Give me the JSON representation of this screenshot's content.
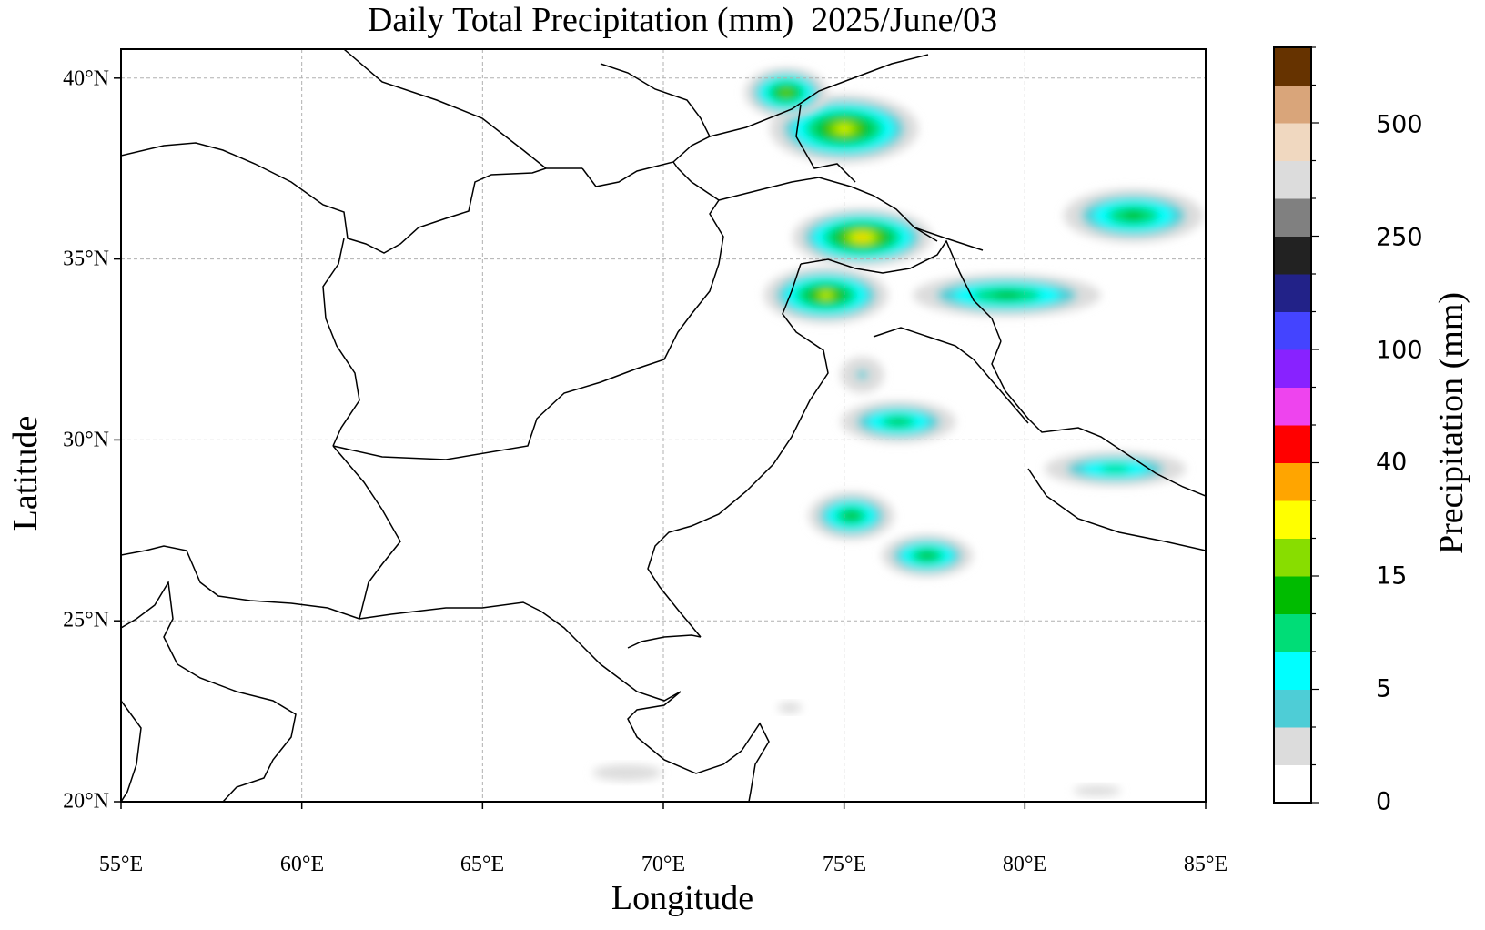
{
  "title": "Daily Total Precipitation (mm)  2025/June/03",
  "xlabel": "Longitude",
  "ylabel": "Latitude",
  "colorbar_label": "Precipitation (mm)",
  "x_ticks": [
    "55°E",
    "60°E",
    "65°E",
    "70°E",
    "75°E",
    "80°E",
    "85°E"
  ],
  "y_ticks": [
    "20°N",
    "25°N",
    "30°N",
    "35°N",
    "40°N"
  ],
  "colorbar_ticks": [
    "0",
    "5",
    "15",
    "40",
    "100",
    "250",
    "500"
  ],
  "colorbar_colors": [
    "#ffffff",
    "#dcdcdc",
    "#4ecdd6",
    "#00ffff",
    "#00dd77",
    "#00bb00",
    "#88dd00",
    "#ffff00",
    "#ffa500",
    "#ff0000",
    "#ee44ee",
    "#8822ff",
    "#4444ff",
    "#222288",
    "#222222",
    "#808080",
    "#dcdcdc",
    "#f0d8c0",
    "#d9a57a",
    "#663300"
  ],
  "chart_data": {
    "type": "heatmap",
    "title": "Daily Total Precipitation (mm)  2025/June/03",
    "xlabel": "Longitude",
    "ylabel": "Latitude",
    "xlim": [
      55,
      85
    ],
    "ylim": [
      20,
      40.8
    ],
    "x_tick_values": [
      55,
      60,
      65,
      70,
      75,
      80,
      85
    ],
    "y_tick_values": [
      20,
      25,
      30,
      35,
      40
    ],
    "grid": true,
    "colorbar": {
      "label": "Precipitation (mm)",
      "position": "right",
      "tick_values": [
        0,
        5,
        15,
        40,
        100,
        250,
        500
      ]
    },
    "rain_regions": [
      {
        "lon": 75.0,
        "lat": 38.6,
        "rlon": 2.6,
        "rlat": 1.2,
        "peak": 22
      },
      {
        "lon": 73.4,
        "lat": 39.6,
        "rlon": 1.5,
        "rlat": 0.9,
        "peak": 18
      },
      {
        "lon": 75.5,
        "lat": 35.6,
        "rlon": 2.4,
        "rlat": 1.0,
        "peak": 25
      },
      {
        "lon": 74.5,
        "lat": 34.0,
        "rlon": 2.2,
        "rlat": 1.0,
        "peak": 20
      },
      {
        "lon": 79.5,
        "lat": 34.0,
        "rlon": 3.5,
        "rlat": 0.8,
        "peak": 14
      },
      {
        "lon": 83.0,
        "lat": 36.2,
        "rlon": 2.6,
        "rlat": 1.0,
        "peak": 14
      },
      {
        "lon": 76.5,
        "lat": 30.5,
        "rlon": 2.2,
        "rlat": 0.8,
        "peak": 12
      },
      {
        "lon": 82.5,
        "lat": 29.2,
        "rlon": 2.8,
        "rlat": 0.7,
        "peak": 10
      },
      {
        "lon": 75.2,
        "lat": 27.9,
        "rlon": 1.6,
        "rlat": 0.9,
        "peak": 14
      },
      {
        "lon": 77.3,
        "lat": 26.8,
        "rlon": 1.7,
        "rlat": 0.8,
        "peak": 14
      },
      {
        "lon": 75.5,
        "lat": 31.8,
        "rlon": 1.2,
        "rlat": 1.0,
        "peak": 3
      },
      {
        "lon": 73.5,
        "lat": 22.6,
        "rlon": 0.9,
        "rlat": 0.4,
        "peak": 1.5
      },
      {
        "lon": 69.0,
        "lat": 20.8,
        "rlon": 2.6,
        "rlat": 0.6,
        "peak": 1.5
      },
      {
        "lon": 82.0,
        "lat": 20.3,
        "rlon": 1.8,
        "rlat": 0.4,
        "peak": 1.5
      }
    ]
  }
}
